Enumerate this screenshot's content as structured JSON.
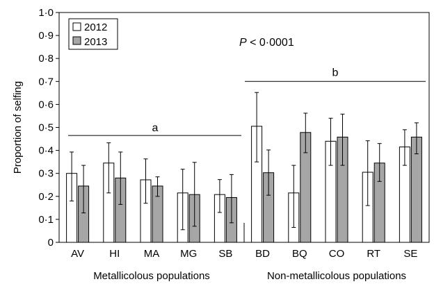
{
  "chart_data": {
    "type": "bar",
    "ylabel": "Proportion of selfing",
    "ylim": [
      0,
      1.0
    ],
    "yticks": [
      "0",
      "0·1",
      "0·2",
      "0·3",
      "0·4",
      "0·5",
      "0·6",
      "0·7",
      "0·8",
      "0·9",
      "1·0"
    ],
    "categories": [
      "AV",
      "HI",
      "MA",
      "MG",
      "SB",
      "BD",
      "BQ",
      "CO",
      "RT",
      "SE"
    ],
    "group_labels": [
      "Metallicolous populations",
      "Non-metallicolous populations"
    ],
    "series": [
      {
        "name": "2012",
        "color": "#ffffff",
        "values": [
          0.3,
          0.345,
          0.272,
          0.215,
          0.208,
          0.505,
          0.215,
          0.44,
          0.305,
          0.415
        ],
        "err_low": [
          0.18,
          0.215,
          0.17,
          0.055,
          0.13,
          0.35,
          0.065,
          0.335,
          0.16,
          0.335
        ],
        "err_high": [
          0.393,
          0.433,
          0.363,
          0.318,
          0.273,
          0.652,
          0.335,
          0.54,
          0.442,
          0.49
        ]
      },
      {
        "name": "2013",
        "color": "#a6a6a6",
        "values": [
          0.245,
          0.28,
          0.245,
          0.208,
          0.195,
          0.303,
          0.478,
          0.458,
          0.345,
          0.458
        ],
        "err_low": [
          0.128,
          0.165,
          0.2,
          0.07,
          0.085,
          0.205,
          0.39,
          0.335,
          0.265,
          0.385
        ],
        "err_high": [
          0.335,
          0.393,
          0.285,
          0.348,
          0.295,
          0.402,
          0.562,
          0.558,
          0.43,
          0.52
        ]
      }
    ],
    "annotations": {
      "p_prefix": "P",
      "p_suffix": " < 0·0001",
      "group_a_label": "a",
      "group_a_level": 0.465,
      "group_b_label": "b",
      "group_b_level": 0.7
    },
    "legend": {
      "position": "top-left",
      "entries": [
        "2012",
        "2013"
      ]
    },
    "grid": false
  }
}
